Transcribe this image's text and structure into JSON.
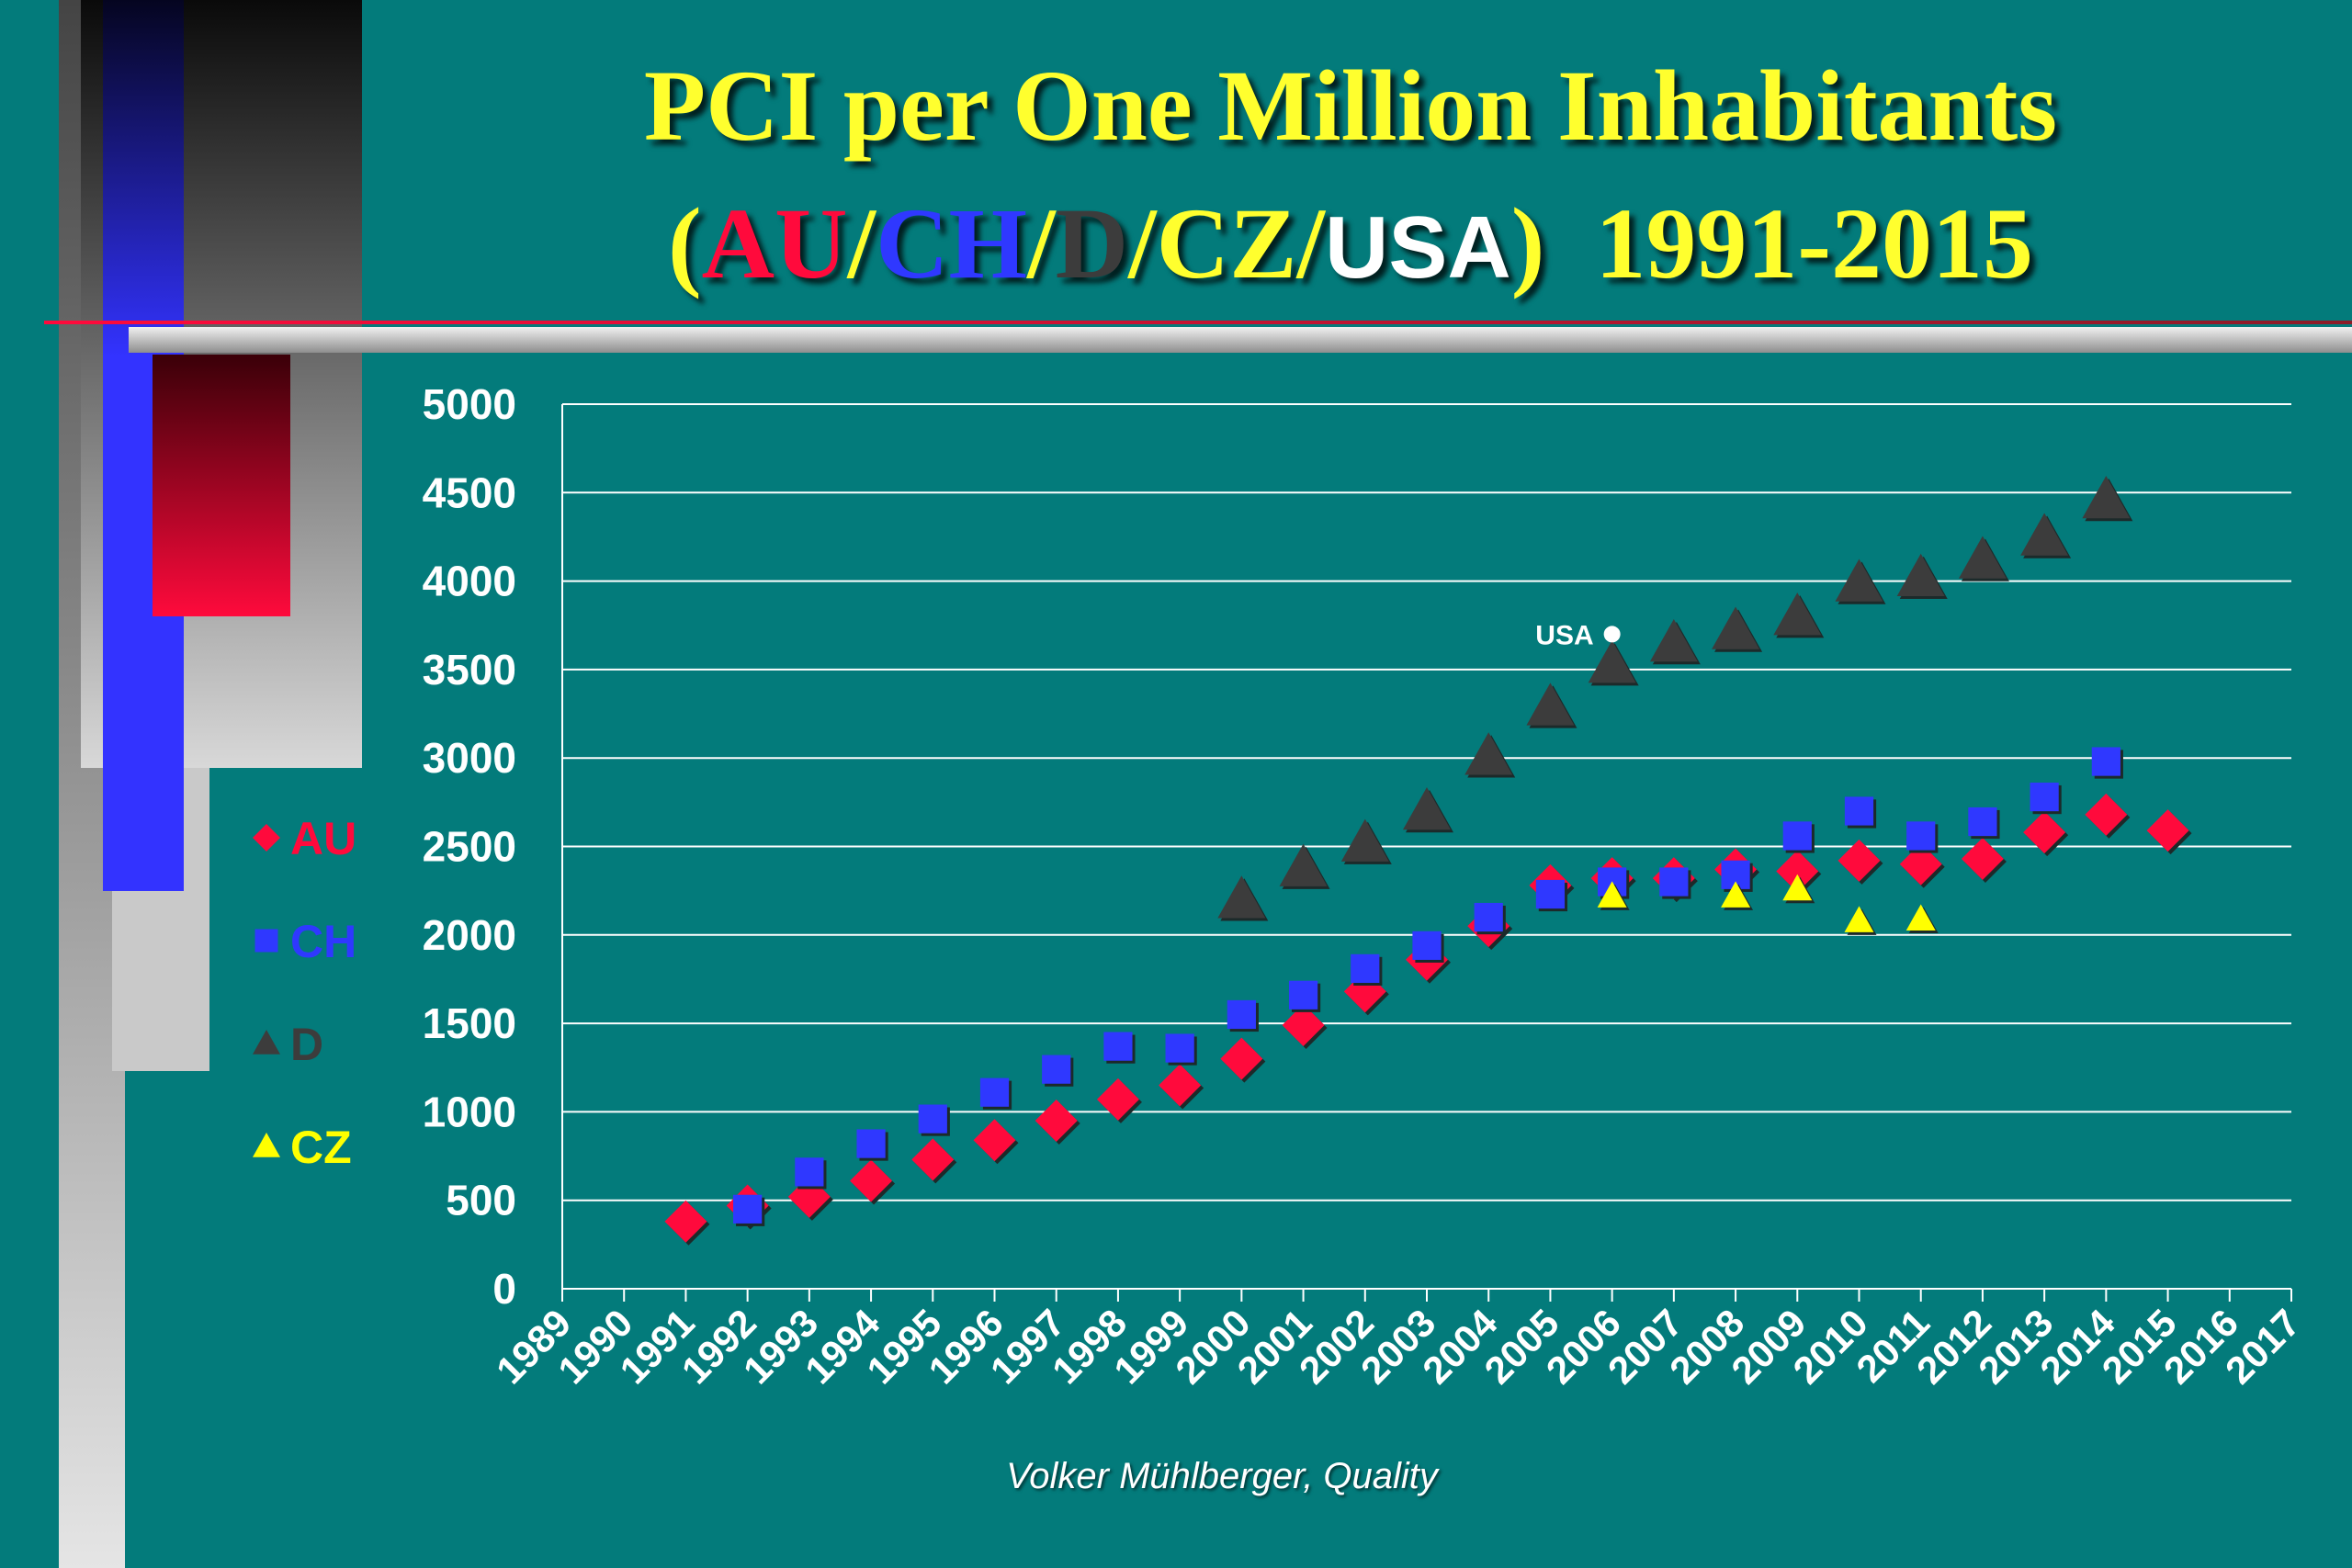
{
  "title": {
    "line1": "PCI per One Million Inhabitants",
    "paren_open": "(",
    "au": "AU",
    "sep1": "/",
    "ch": "CH",
    "sep2": "/",
    "d": "D",
    "sep3": "/",
    "cz": "CZ",
    "sep4": "/",
    "usa": "USA",
    "paren_close": ")",
    "years": "1991-2015"
  },
  "credit": "Volker Mühlberger, Quality",
  "colors": {
    "background": "#037b7b",
    "title": "#ffff2e",
    "au": "#ff0a3c",
    "ch": "#2f38ff",
    "d": "#3c3c3c",
    "cz": "#ffff00",
    "usa": "#ffffff",
    "grid": "#ffffff"
  },
  "chart_data": {
    "type": "scatter",
    "title": "PCI per One Million Inhabitants (AU/CH/D/CZ/USA) 1991-2015",
    "xlabel": "",
    "ylabel": "",
    "xlim": [
      1989,
      2017
    ],
    "ylim": [
      0,
      5000
    ],
    "yticks": [
      0,
      500,
      1000,
      1500,
      2000,
      2500,
      3000,
      3500,
      4000,
      4500,
      5000
    ],
    "xticks": [
      1989,
      1990,
      1991,
      1992,
      1993,
      1994,
      1995,
      1996,
      1997,
      1998,
      1999,
      2000,
      2001,
      2002,
      2003,
      2004,
      2005,
      2006,
      2007,
      2008,
      2009,
      2010,
      2011,
      2012,
      2013,
      2014,
      2015,
      2016,
      2017
    ],
    "grid": "horizontal",
    "legend_position": "left",
    "series": [
      {
        "name": "AU",
        "marker": "diamond",
        "points": [
          [
            1991,
            380
          ],
          [
            1992,
            470
          ],
          [
            1993,
            520
          ],
          [
            1994,
            610
          ],
          [
            1995,
            730
          ],
          [
            1996,
            840
          ],
          [
            1997,
            950
          ],
          [
            1998,
            1070
          ],
          [
            1999,
            1150
          ],
          [
            2000,
            1300
          ],
          [
            2001,
            1490
          ],
          [
            2002,
            1680
          ],
          [
            2003,
            1860
          ],
          [
            2004,
            2050
          ],
          [
            2005,
            2280
          ],
          [
            2006,
            2320
          ],
          [
            2007,
            2320
          ],
          [
            2008,
            2370
          ],
          [
            2009,
            2360
          ],
          [
            2010,
            2420
          ],
          [
            2011,
            2400
          ],
          [
            2012,
            2430
          ],
          [
            2013,
            2580
          ],
          [
            2014,
            2680
          ],
          [
            2015,
            2590
          ]
        ]
      },
      {
        "name": "CH",
        "marker": "square",
        "points": [
          [
            1992,
            450
          ],
          [
            1993,
            660
          ],
          [
            1994,
            820
          ],
          [
            1995,
            960
          ],
          [
            1996,
            1110
          ],
          [
            1997,
            1240
          ],
          [
            1998,
            1370
          ],
          [
            1999,
            1360
          ],
          [
            2000,
            1550
          ],
          [
            2001,
            1660
          ],
          [
            2002,
            1810
          ],
          [
            2003,
            1940
          ],
          [
            2004,
            2100
          ],
          [
            2005,
            2230
          ],
          [
            2006,
            2300
          ],
          [
            2007,
            2300
          ],
          [
            2008,
            2340
          ],
          [
            2009,
            2560
          ],
          [
            2010,
            2700
          ],
          [
            2011,
            2560
          ],
          [
            2012,
            2640
          ],
          [
            2013,
            2780
          ],
          [
            2014,
            2980
          ]
        ]
      },
      {
        "name": "D",
        "marker": "triangle",
        "points": [
          [
            2000,
            2200
          ],
          [
            2001,
            2380
          ],
          [
            2002,
            2520
          ],
          [
            2003,
            2700
          ],
          [
            2004,
            3010
          ],
          [
            2005,
            3290
          ],
          [
            2006,
            3530
          ],
          [
            2007,
            3650
          ],
          [
            2008,
            3720
          ],
          [
            2009,
            3800
          ],
          [
            2010,
            3990
          ],
          [
            2011,
            4020
          ],
          [
            2012,
            4120
          ],
          [
            2013,
            4250
          ],
          [
            2014,
            4460
          ]
        ]
      },
      {
        "name": "CZ",
        "marker": "triangle",
        "points": [
          [
            2006,
            2220
          ],
          [
            2008,
            2220
          ],
          [
            2009,
            2260
          ],
          [
            2010,
            2080
          ],
          [
            2011,
            2090
          ]
        ]
      },
      {
        "name": "USA",
        "marker": "circle",
        "label": "USA",
        "points": [
          [
            2006,
            3700
          ]
        ]
      }
    ]
  }
}
